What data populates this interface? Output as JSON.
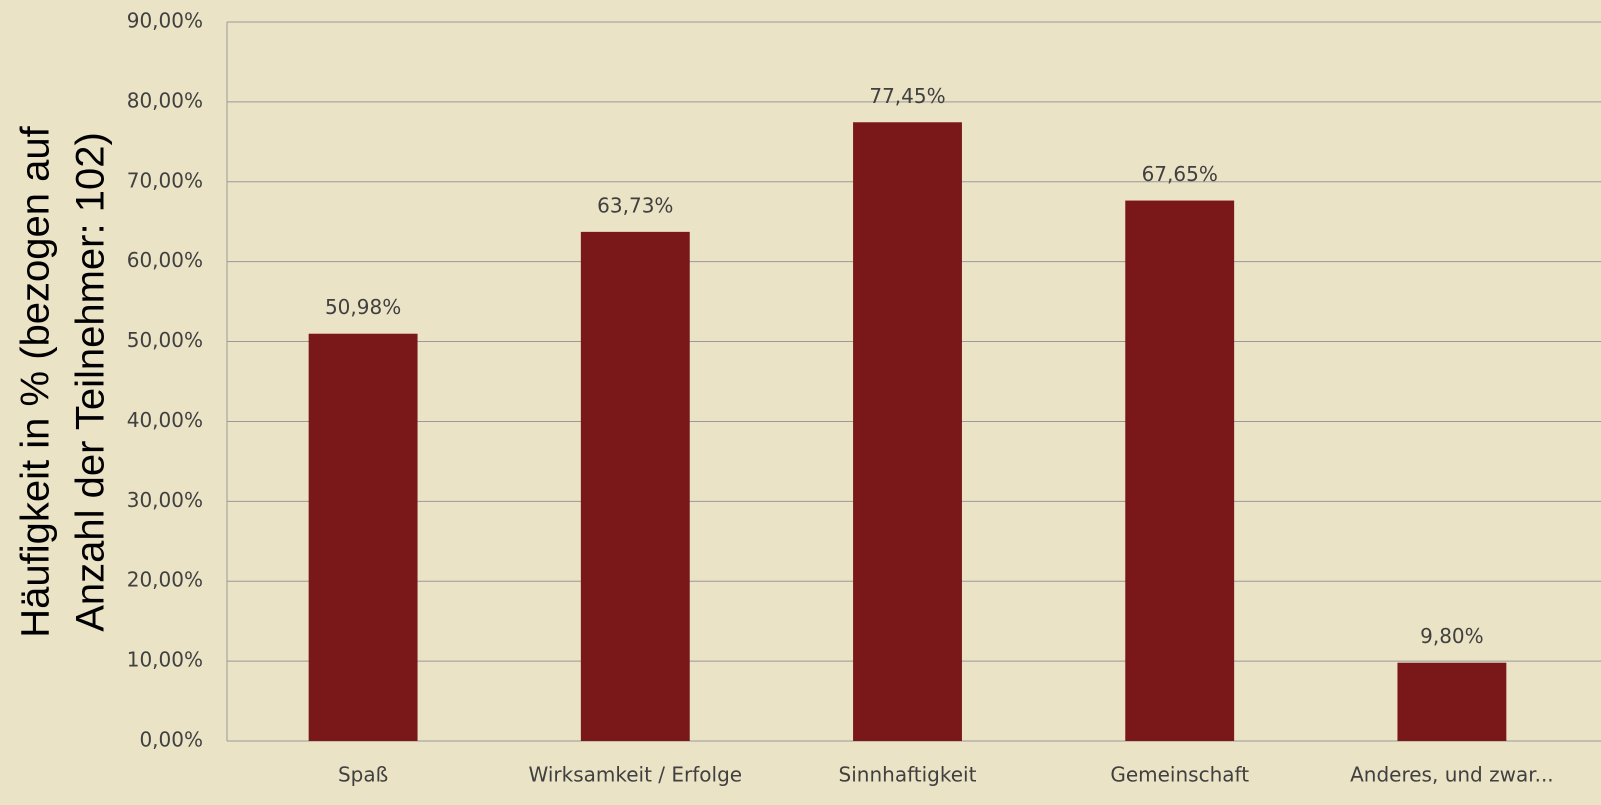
{
  "chart_data": {
    "type": "bar",
    "ylabel": [
      "Häufigkeit in % (bezogen auf",
      "Anzahl der Teilnehmer: 102)"
    ],
    "categories": [
      "Spaß",
      "Wirksamkeit / Erfolge",
      "Sinnhaftigkeit",
      "Gemeinschaft",
      "Anderes, und zwar..."
    ],
    "values": [
      50.98,
      63.73,
      77.45,
      67.65,
      9.8
    ],
    "value_labels": [
      "50,98%",
      "63,73%",
      "77,45%",
      "67,65%",
      "9,80%"
    ],
    "color": "#7a1719",
    "ylim": [
      0,
      90
    ],
    "yticks": [
      {
        "value": 0,
        "label": "0,00%"
      },
      {
        "value": 10,
        "label": "10,00%"
      },
      {
        "value": 20,
        "label": "20,00%"
      },
      {
        "value": 30,
        "label": "30,00%"
      },
      {
        "value": 40,
        "label": "40,00%"
      },
      {
        "value": 50,
        "label": "50,00%"
      },
      {
        "value": 60,
        "label": "60,00%"
      },
      {
        "value": 70,
        "label": "70,00%"
      },
      {
        "value": 80,
        "label": "80,00%"
      },
      {
        "value": 90,
        "label": "90,00%"
      }
    ],
    "grid": true
  }
}
